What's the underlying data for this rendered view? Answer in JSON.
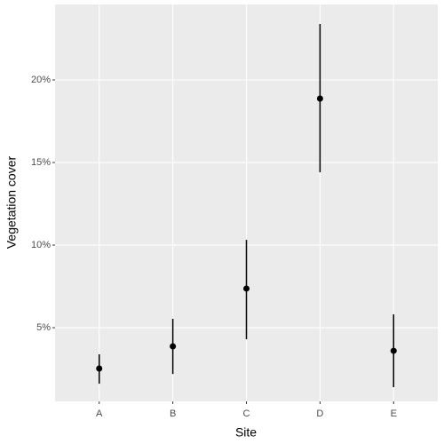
{
  "chart_data": {
    "type": "pointrange",
    "x_label": "Site",
    "y_label": "Vegetation cover",
    "categories": [
      "A",
      "B",
      "C",
      "D",
      "E"
    ],
    "values": [
      2.53,
      3.87,
      7.37,
      18.87,
      3.6
    ],
    "lower": [
      1.61,
      2.2,
      4.3,
      14.41,
      1.4
    ],
    "upper": [
      3.39,
      5.54,
      10.32,
      23.39,
      5.81
    ],
    "color": "#000000",
    "ylim": [
      0.54,
      24.57
    ],
    "yticks": [
      {
        "value": 5,
        "label": "5%"
      },
      {
        "value": 10,
        "label": "10%"
      },
      {
        "value": 15,
        "label": "15%"
      },
      {
        "value": 20,
        "label": "20%"
      }
    ],
    "grid": true
  }
}
